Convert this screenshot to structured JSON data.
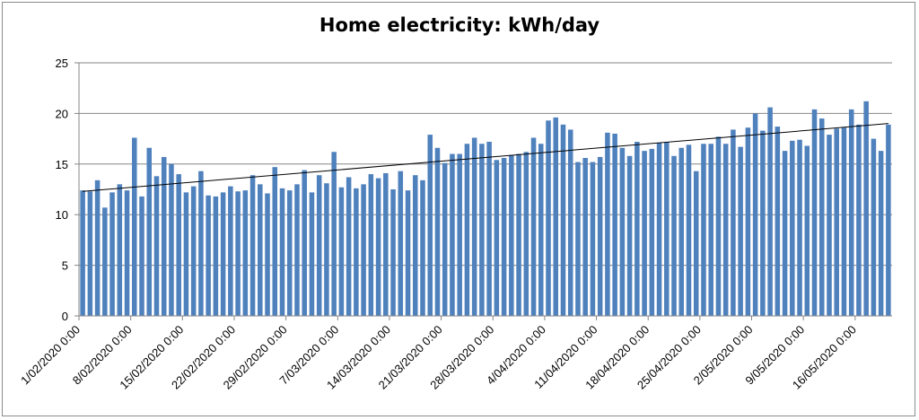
{
  "chart_data": {
    "type": "bar",
    "title": "Home electricity: kWh/day",
    "xlabel": "",
    "ylabel": "",
    "ylim": [
      0,
      25
    ],
    "yticks": [
      0,
      5,
      10,
      15,
      20,
      25
    ],
    "grid": true,
    "legend": "none",
    "bar_color": "#4f81bd",
    "trendline": {
      "type": "linear",
      "start": 12.3,
      "end": 19.0,
      "color": "#000000"
    },
    "tick_labels": [
      {
        "index": 0,
        "label": "1/02/2020 0:00"
      },
      {
        "index": 7,
        "label": "8/02/2020 0:00"
      },
      {
        "index": 14,
        "label": "15/02/2020 0:00"
      },
      {
        "index": 21,
        "label": "22/02/2020 0:00"
      },
      {
        "index": 28,
        "label": "29/02/2020 0:00"
      },
      {
        "index": 35,
        "label": "7/03/2020 0:00"
      },
      {
        "index": 42,
        "label": "14/03/2020 0:00"
      },
      {
        "index": 49,
        "label": "21/03/2020 0:00"
      },
      {
        "index": 56,
        "label": "28/03/2020 0:00"
      },
      {
        "index": 63,
        "label": "4/04/2020 0:00"
      },
      {
        "index": 70,
        "label": "11/04/2020 0:00"
      },
      {
        "index": 77,
        "label": "18/04/2020 0:00"
      },
      {
        "index": 84,
        "label": "25/04/2020 0:00"
      },
      {
        "index": 91,
        "label": "2/05/2020 0:00"
      },
      {
        "index": 98,
        "label": "9/05/2020 0:00"
      },
      {
        "index": 105,
        "label": "16/05/2020 0:00"
      }
    ],
    "values": [
      12.4,
      12.3,
      13.4,
      10.7,
      12.2,
      13.0,
      12.4,
      17.6,
      11.8,
      16.6,
      13.8,
      15.7,
      15.0,
      14.0,
      12.2,
      12.8,
      14.3,
      11.9,
      11.8,
      12.2,
      12.8,
      12.3,
      12.4,
      13.9,
      13.0,
      12.1,
      14.7,
      12.6,
      12.4,
      13.0,
      14.4,
      12.2,
      13.9,
      13.1,
      16.2,
      12.7,
      13.7,
      12.6,
      13.0,
      14.0,
      13.6,
      14.1,
      12.5,
      14.3,
      12.4,
      13.9,
      13.4,
      17.9,
      16.6,
      15.1,
      16.0,
      16.0,
      17.0,
      17.6,
      17.0,
      17.2,
      15.4,
      15.6,
      15.9,
      16.0,
      16.2,
      17.6,
      17.0,
      19.3,
      19.6,
      18.9,
      18.4,
      15.2,
      15.6,
      15.2,
      15.7,
      18.1,
      18.0,
      16.6,
      15.8,
      17.2,
      16.3,
      16.5,
      17.1,
      17.2,
      15.8,
      16.6,
      16.9,
      14.3,
      17.0,
      17.0,
      17.7,
      17.0,
      18.4,
      16.7,
      18.6,
      20.0,
      18.3,
      20.6,
      18.7,
      16.3,
      17.3,
      17.4,
      16.8,
      20.4,
      19.5,
      17.9,
      18.5,
      18.6,
      20.4,
      18.9,
      21.2,
      17.5,
      16.3,
      18.9
    ]
  }
}
